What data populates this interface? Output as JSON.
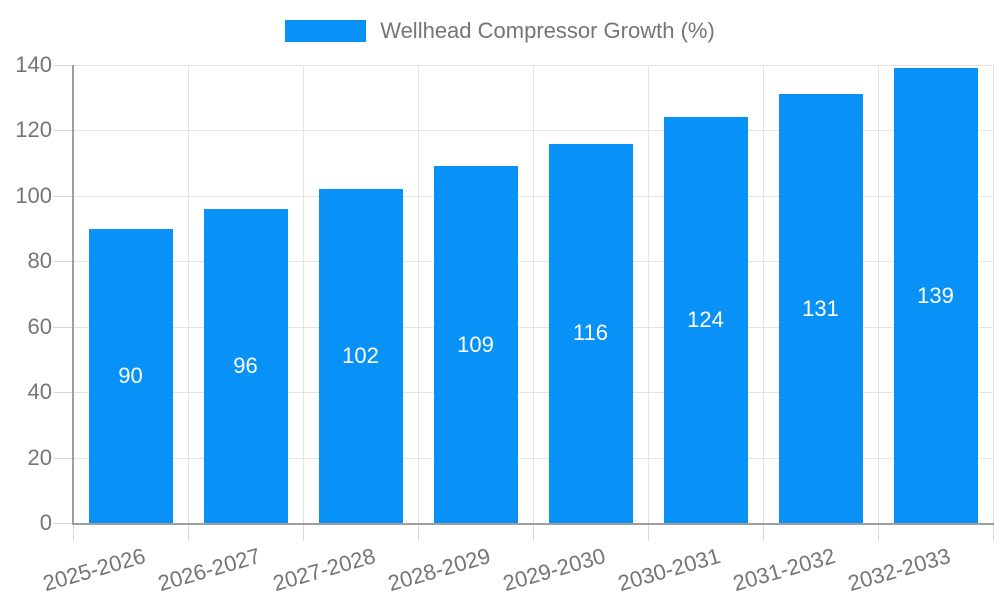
{
  "legend": {
    "label": "Wellhead Compressor Growth (%)"
  },
  "chart_data": {
    "type": "bar",
    "title": "Wellhead Compressor Growth (%)",
    "categories": [
      "2025-2026",
      "2026-2027",
      "2027-2028",
      "2028-2029",
      "2029-2030",
      "2030-2031",
      "2031-2032",
      "2032-2033"
    ],
    "values": [
      90,
      96,
      102,
      109,
      116,
      124,
      131,
      139
    ],
    "bar_value_labels": [
      "90",
      "96",
      "102",
      "109",
      "116",
      "124",
      "131",
      "139"
    ],
    "xlabel": "",
    "ylabel": "",
    "ylim": [
      0,
      140
    ],
    "yticks": [
      0,
      20,
      40,
      60,
      80,
      100,
      120,
      140
    ],
    "grid": true,
    "legend_position": "top-center",
    "colors": {
      "bar": "#0892f8",
      "bar_label": "#ffffff",
      "axis_text": "#757575",
      "gridline": "#e3e3e3",
      "tick": "#d9d9d9",
      "axis_line": "#9e9e9e",
      "background": "#ffffff"
    }
  }
}
